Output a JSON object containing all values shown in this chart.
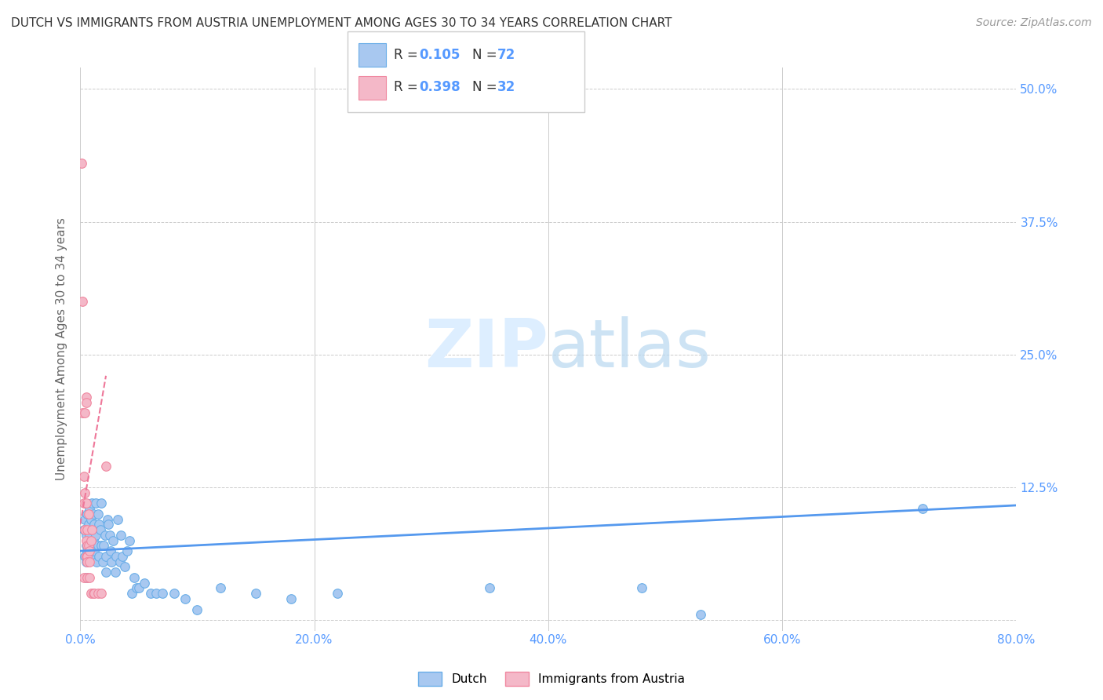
{
  "title": "DUTCH VS IMMIGRANTS FROM AUSTRIA UNEMPLOYMENT AMONG AGES 30 TO 34 YEARS CORRELATION CHART",
  "source": "Source: ZipAtlas.com",
  "ylabel_label": "Unemployment Among Ages 30 to 34 years",
  "legend_labels": [
    "Dutch",
    "Immigrants from Austria"
  ],
  "dutch_color": "#a8c8f0",
  "austrian_color": "#f4b8c8",
  "dutch_edge_color": "#6aaee8",
  "austrian_edge_color": "#f088a0",
  "dutch_line_color": "#5599ee",
  "austrian_line_color": "#ee7799",
  "axis_tick_color": "#5599ff",
  "ylabel_color": "#666666",
  "title_color": "#333333",
  "source_color": "#999999",
  "watermark_color": "#ddeeff",
  "xlim": [
    0.0,
    0.8
  ],
  "ylim": [
    -0.01,
    0.52
  ],
  "xticks": [
    0.0,
    0.2,
    0.4,
    0.6,
    0.8
  ],
  "yticks": [
    0.0,
    0.125,
    0.25,
    0.375,
    0.5
  ],
  "dutch_x": [
    0.003,
    0.004,
    0.004,
    0.005,
    0.005,
    0.005,
    0.005,
    0.006,
    0.006,
    0.006,
    0.007,
    0.007,
    0.008,
    0.008,
    0.009,
    0.009,
    0.01,
    0.01,
    0.01,
    0.011,
    0.011,
    0.012,
    0.012,
    0.013,
    0.013,
    0.014,
    0.015,
    0.015,
    0.016,
    0.016,
    0.017,
    0.018,
    0.018,
    0.019,
    0.02,
    0.021,
    0.022,
    0.022,
    0.023,
    0.024,
    0.025,
    0.026,
    0.027,
    0.028,
    0.03,
    0.031,
    0.032,
    0.034,
    0.035,
    0.036,
    0.038,
    0.04,
    0.042,
    0.044,
    0.046,
    0.048,
    0.05,
    0.055,
    0.06,
    0.065,
    0.07,
    0.08,
    0.09,
    0.1,
    0.12,
    0.15,
    0.18,
    0.22,
    0.35,
    0.48,
    0.53,
    0.72
  ],
  "dutch_y": [
    0.085,
    0.095,
    0.06,
    0.08,
    0.07,
    0.055,
    0.04,
    0.1,
    0.075,
    0.065,
    0.09,
    0.06,
    0.105,
    0.08,
    0.095,
    0.07,
    0.11,
    0.085,
    0.06,
    0.1,
    0.075,
    0.09,
    0.065,
    0.11,
    0.08,
    0.055,
    0.1,
    0.07,
    0.09,
    0.06,
    0.085,
    0.11,
    0.07,
    0.055,
    0.07,
    0.08,
    0.06,
    0.045,
    0.095,
    0.09,
    0.08,
    0.065,
    0.055,
    0.075,
    0.045,
    0.06,
    0.095,
    0.055,
    0.08,
    0.06,
    0.05,
    0.065,
    0.075,
    0.025,
    0.04,
    0.03,
    0.03,
    0.035,
    0.025,
    0.025,
    0.025,
    0.025,
    0.02,
    0.01,
    0.03,
    0.025,
    0.02,
    0.025,
    0.03,
    0.03,
    0.005,
    0.105
  ],
  "austrian_x": [
    0.001,
    0.002,
    0.002,
    0.003,
    0.003,
    0.003,
    0.004,
    0.004,
    0.004,
    0.005,
    0.005,
    0.005,
    0.005,
    0.005,
    0.006,
    0.006,
    0.006,
    0.006,
    0.006,
    0.007,
    0.007,
    0.008,
    0.008,
    0.008,
    0.009,
    0.009,
    0.01,
    0.011,
    0.012,
    0.015,
    0.018,
    0.022
  ],
  "austrian_y": [
    0.43,
    0.3,
    0.195,
    0.135,
    0.11,
    0.04,
    0.195,
    0.12,
    0.085,
    0.21,
    0.205,
    0.11,
    0.075,
    0.06,
    0.085,
    0.07,
    0.06,
    0.055,
    0.04,
    0.1,
    0.07,
    0.065,
    0.055,
    0.04,
    0.075,
    0.025,
    0.085,
    0.025,
    0.025,
    0.025,
    0.025,
    0.145
  ],
  "dutch_trend_x": [
    0.0,
    0.8
  ],
  "dutch_trend_y": [
    0.065,
    0.108
  ],
  "austrian_trend_x": [
    0.0,
    0.022
  ],
  "austrian_trend_y": [
    0.09,
    0.23
  ]
}
